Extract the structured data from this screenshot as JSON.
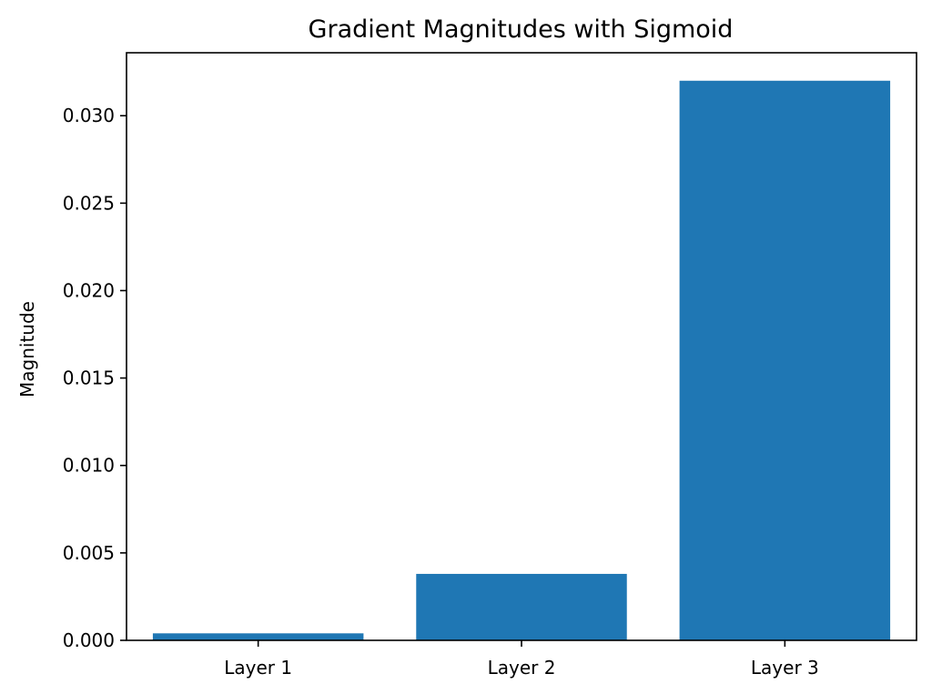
{
  "chart_data": {
    "type": "bar",
    "title": "Gradient Magnitudes with Sigmoid",
    "xlabel": "",
    "ylabel": "Magnitude",
    "categories": [
      "Layer 1",
      "Layer 2",
      "Layer 3"
    ],
    "values": [
      0.0004,
      0.0038,
      0.032
    ],
    "ylim": [
      0,
      0.0336
    ],
    "yticks": [
      0.0,
      0.005,
      0.01,
      0.015,
      0.02,
      0.025,
      0.03
    ],
    "ytick_labels": [
      "0.000",
      "0.005",
      "0.010",
      "0.015",
      "0.020",
      "0.025",
      "0.030"
    ],
    "bar_color": "#1f77b4",
    "grid": false,
    "legend": "none"
  }
}
